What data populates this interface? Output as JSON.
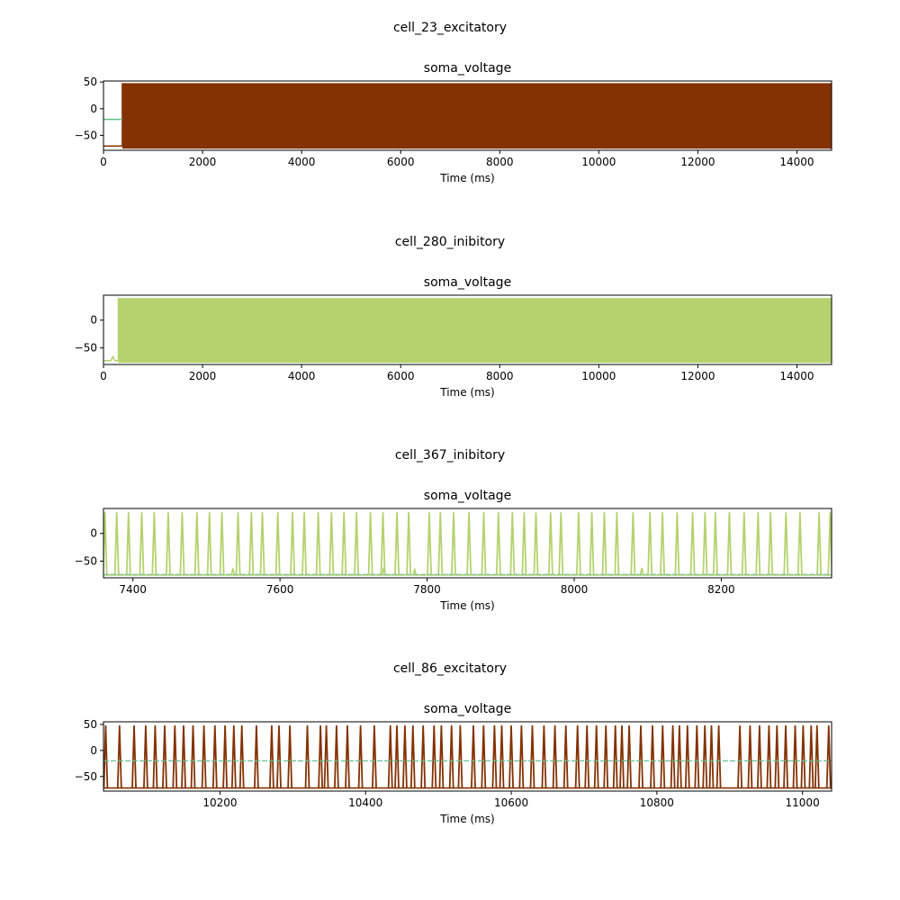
{
  "chart_data": [
    {
      "type": "line",
      "suptitle": "cell_23_excitatory",
      "title": "soma_voltage",
      "xlabel": "Time (ms)",
      "ylabel": "",
      "xlim": [
        0,
        14700
      ],
      "ylim": [
        -78,
        52
      ],
      "xticks": [
        0,
        2000,
        4000,
        6000,
        8000,
        10000,
        12000,
        14000
      ],
      "yticks": [
        -50,
        0,
        50
      ],
      "grid": false,
      "spiking": {
        "start": 380,
        "rest_before": -70,
        "baseline": -75,
        "peak": 48,
        "pre_baseline_trace": -20
      },
      "series": [
        {
          "role": "membrane",
          "color": "#843204",
          "points": [
            [
              0,
              -70
            ],
            [
              380,
              -70
            ],
            [
              380,
              48
            ],
            [
              14700,
              48
            ]
          ]
        },
        {
          "role": "secondary",
          "color": "#5fbf8f",
          "points": [
            [
              0,
              -20
            ],
            [
              380,
              -20
            ]
          ]
        }
      ]
    },
    {
      "type": "line",
      "suptitle": "cell_280_inibitory",
      "title": "soma_voltage",
      "xlabel": "Time (ms)",
      "ylabel": "",
      "xlim": [
        0,
        14700
      ],
      "ylim": [
        -80,
        45
      ],
      "xticks": [
        0,
        2000,
        4000,
        6000,
        8000,
        10000,
        12000,
        14000
      ],
      "yticks": [
        -50,
        0
      ],
      "grid": false,
      "spiking": {
        "start": 300,
        "baseline": -77,
        "peak": 40
      },
      "series": [
        {
          "role": "membrane",
          "color": "#b5d26e",
          "points": [
            [
              0,
              -73
            ],
            [
              150,
              -73
            ],
            [
              190,
              -66
            ],
            [
              230,
              -73
            ],
            [
              300,
              -73
            ],
            [
              300,
              40
            ],
            [
              14700,
              40
            ]
          ]
        }
      ]
    },
    {
      "type": "line",
      "suptitle": "cell_367_inibitory",
      "title": "soma_voltage",
      "xlabel": "Time (ms)",
      "ylabel": "",
      "xlim": [
        7360,
        8350
      ],
      "ylim": [
        -80,
        45
      ],
      "xticks": [
        7400,
        7600,
        7800,
        8000,
        8200
      ],
      "yticks": [
        -50,
        0
      ],
      "grid": false,
      "baseline": -75,
      "secondary_baseline": -74,
      "series": [
        {
          "role": "spikes",
          "color": "#b5d26e",
          "spike_times": [
            7362,
            7378,
            7394,
            7412,
            7429,
            7448,
            7467,
            7487,
            7504,
            7521,
            7543,
            7561,
            7576,
            7597,
            7617,
            7633,
            7652,
            7670,
            7687,
            7704,
            7723,
            7740,
            7759,
            7775,
            7803,
            7818,
            7836,
            7857,
            7877,
            7897,
            7916,
            7932,
            7948,
            7968,
            7982,
            8006,
            8024,
            8041,
            8058,
            8080,
            8103,
            8120,
            8140,
            8161,
            8178,
            8192,
            8211,
            8231,
            8250,
            8267,
            8288,
            8307,
            8333,
            8348
          ],
          "peak": 37,
          "small_events": [
            [
              7536,
              -63
            ],
            [
              7741,
              -62
            ],
            [
              7783,
              -65
            ],
            [
              8092,
              -62
            ]
          ]
        },
        {
          "role": "secondary",
          "color": "#7fc6a4",
          "value": -74
        }
      ]
    },
    {
      "type": "line",
      "suptitle": "cell_86_excitatory",
      "title": "soma_voltage",
      "xlabel": "Time (ms)",
      "ylabel": "",
      "xlim": [
        10040,
        11040
      ],
      "ylim": [
        -78,
        55
      ],
      "xticks": [
        10200,
        10400,
        10600,
        10800,
        11000
      ],
      "yticks": [
        -50,
        0,
        50
      ],
      "grid": false,
      "baseline": -72,
      "secondary_baseline": -20,
      "series": [
        {
          "role": "spikes",
          "color": "#843204",
          "spike_times": [
            10043,
            10062,
            10082,
            10098,
            10111,
            10124,
            10138,
            10150,
            10163,
            10178,
            10193,
            10207,
            10219,
            10230,
            10250,
            10271,
            10281,
            10296,
            10320,
            10338,
            10346,
            10360,
            10375,
            10393,
            10412,
            10434,
            10443,
            10454,
            10465,
            10479,
            10494,
            10504,
            10518,
            10530,
            10548,
            10562,
            10577,
            10587,
            10600,
            10614,
            10629,
            10645,
            10660,
            10675,
            10691,
            10704,
            10717,
            10730,
            10743,
            10752,
            10762,
            10778,
            10794,
            10808,
            10822,
            10831,
            10842,
            10855,
            10866,
            10875,
            10885,
            10914,
            10928,
            10941,
            10954,
            10965,
            10977,
            10990,
            11001,
            11012,
            11020,
            11036
          ],
          "peak": 47
        },
        {
          "role": "secondary",
          "color": "#5fbf8f",
          "value": -20
        }
      ]
    }
  ]
}
